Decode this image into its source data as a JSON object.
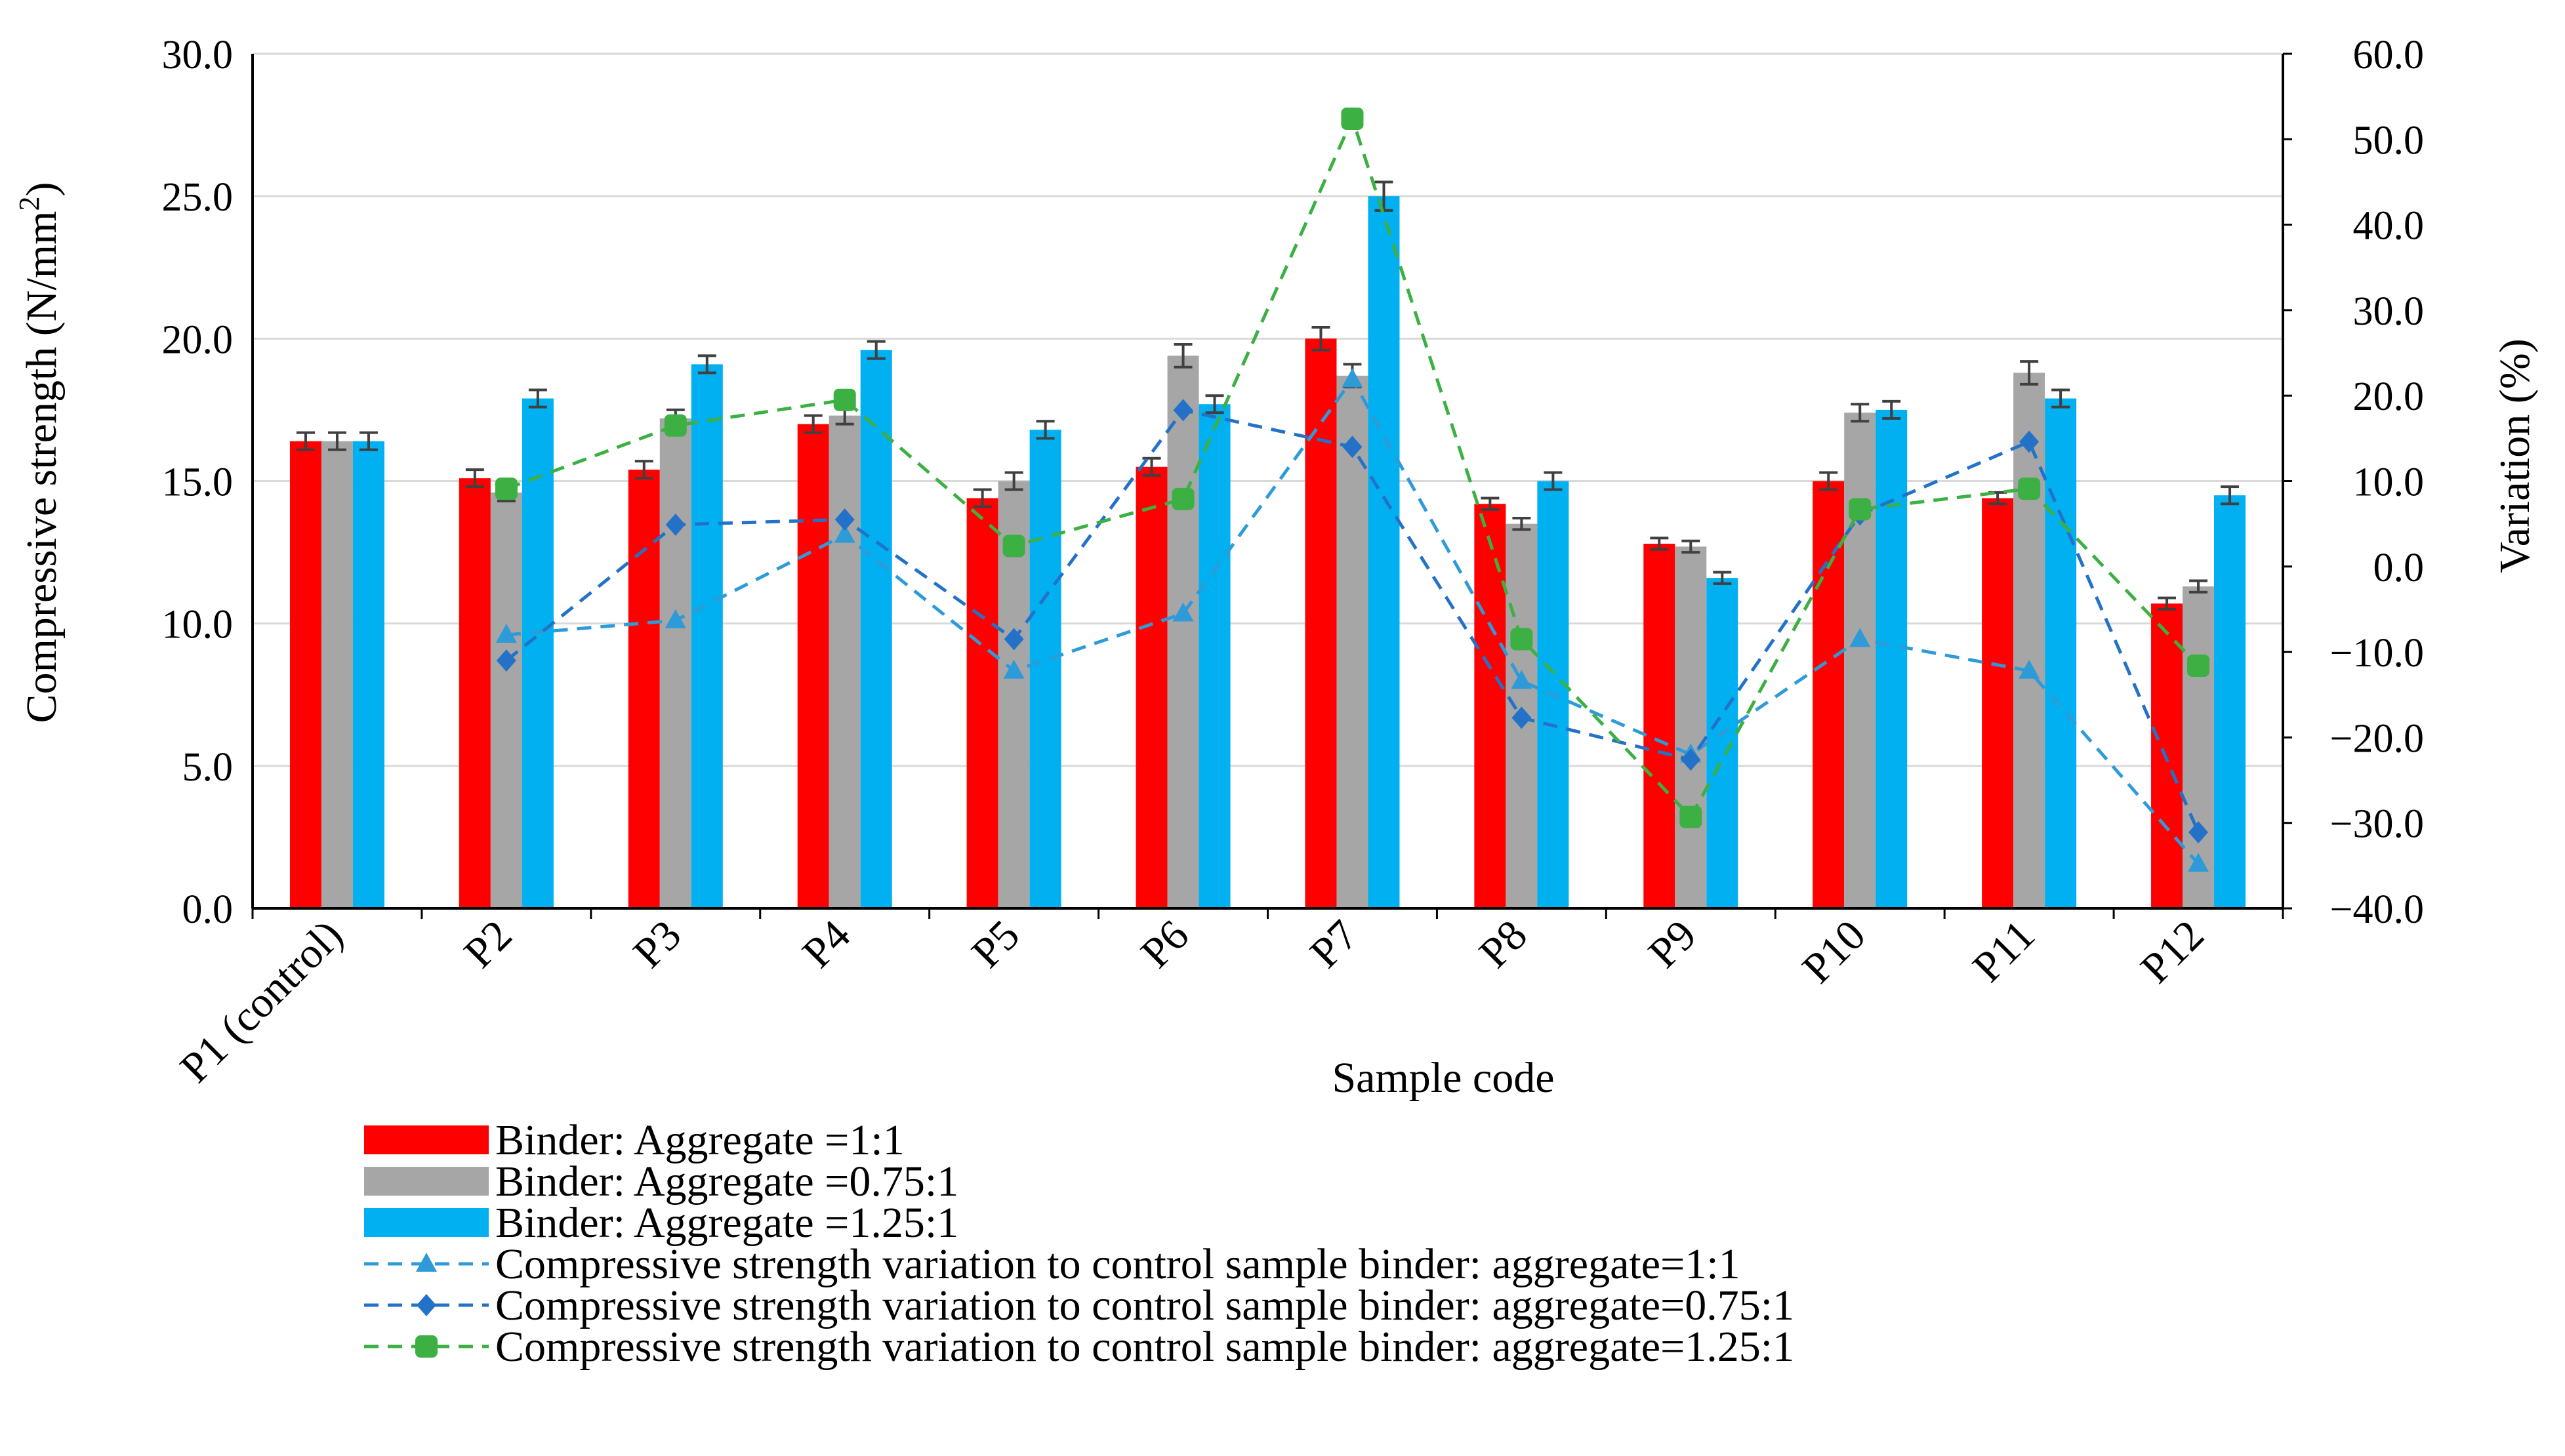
{
  "chart_data": {
    "type": "bar+line",
    "categories": [
      "P1 (control)",
      "P2",
      "P3",
      "P4",
      "P5",
      "P6",
      "P7",
      "P8",
      "P9",
      "P10",
      "P11",
      "P12"
    ],
    "xlabel": "Sample code",
    "ylabel": "Compressive strength (N/mm",
    "ylabel_sup": "2",
    "ylabel_close": ")",
    "y2label": "Variation (%)",
    "ylim": [
      0,
      30
    ],
    "y2lim": [
      -40,
      60
    ],
    "yticks": [
      "0.0",
      "5.0",
      "10.0",
      "15.0",
      "20.0",
      "25.0",
      "30.0"
    ],
    "y2ticks": [
      "−40.0",
      "−30.0",
      "−20.0",
      "−10.0",
      "0.0",
      "10.0",
      "20.0",
      "30.0",
      "40.0",
      "50.0",
      "60.0"
    ],
    "bar_series": [
      {
        "name": "Binder:  Aggregate =1:1",
        "color": "#ff0000",
        "values": [
          16.4,
          15.1,
          15.4,
          17.0,
          14.4,
          15.5,
          20.0,
          14.2,
          12.8,
          15.0,
          14.4,
          10.7
        ],
        "errors": [
          0.3,
          0.3,
          0.3,
          0.3,
          0.3,
          0.3,
          0.4,
          0.2,
          0.2,
          0.3,
          0.2,
          0.2
        ]
      },
      {
        "name": "Binder: Aggregate =0.75:1",
        "color": "#a6a6a6",
        "values": [
          16.4,
          14.6,
          17.2,
          17.3,
          15.0,
          19.4,
          18.7,
          13.5,
          12.7,
          17.4,
          18.8,
          11.3
        ],
        "errors": [
          0.3,
          0.3,
          0.3,
          0.3,
          0.3,
          0.4,
          0.4,
          0.2,
          0.2,
          0.3,
          0.4,
          0.2
        ]
      },
      {
        "name": "Binder: Aggregate =1.25:1",
        "color": "#00b0f0",
        "values": [
          16.4,
          17.9,
          19.1,
          19.6,
          16.8,
          17.7,
          25.0,
          15.0,
          11.6,
          17.5,
          17.9,
          14.5
        ],
        "errors": [
          0.3,
          0.3,
          0.3,
          0.3,
          0.3,
          0.3,
          0.5,
          0.3,
          0.2,
          0.3,
          0.3,
          0.3
        ]
      }
    ],
    "line_series": [
      {
        "name": "Compressive strength variation to control sample binder: aggregate=1:1",
        "color": "#2e9bd8",
        "marker": "triangle",
        "values": [
          null,
          -8.0,
          -6.3,
          3.7,
          -12.2,
          -5.5,
          21.9,
          -13.4,
          -22.0,
          -8.5,
          -12.2,
          -34.8
        ]
      },
      {
        "name": "Compressive strength variation to control sample binder: aggregate=0.75:1",
        "color": "#2472c8",
        "marker": "diamond",
        "values": [
          null,
          -11.0,
          4.9,
          5.5,
          -8.5,
          18.3,
          14.0,
          -17.7,
          -22.6,
          6.1,
          14.6,
          -31.1
        ]
      },
      {
        "name": "Compressive strength variation to control sample binder: aggregate=1.25:1",
        "color": "#3cb043",
        "marker": "square",
        "values": [
          null,
          9.1,
          16.5,
          19.5,
          2.4,
          7.9,
          52.4,
          -8.5,
          -29.3,
          6.7,
          9.1,
          -11.6
        ]
      }
    ],
    "legend_position": "bottom"
  }
}
